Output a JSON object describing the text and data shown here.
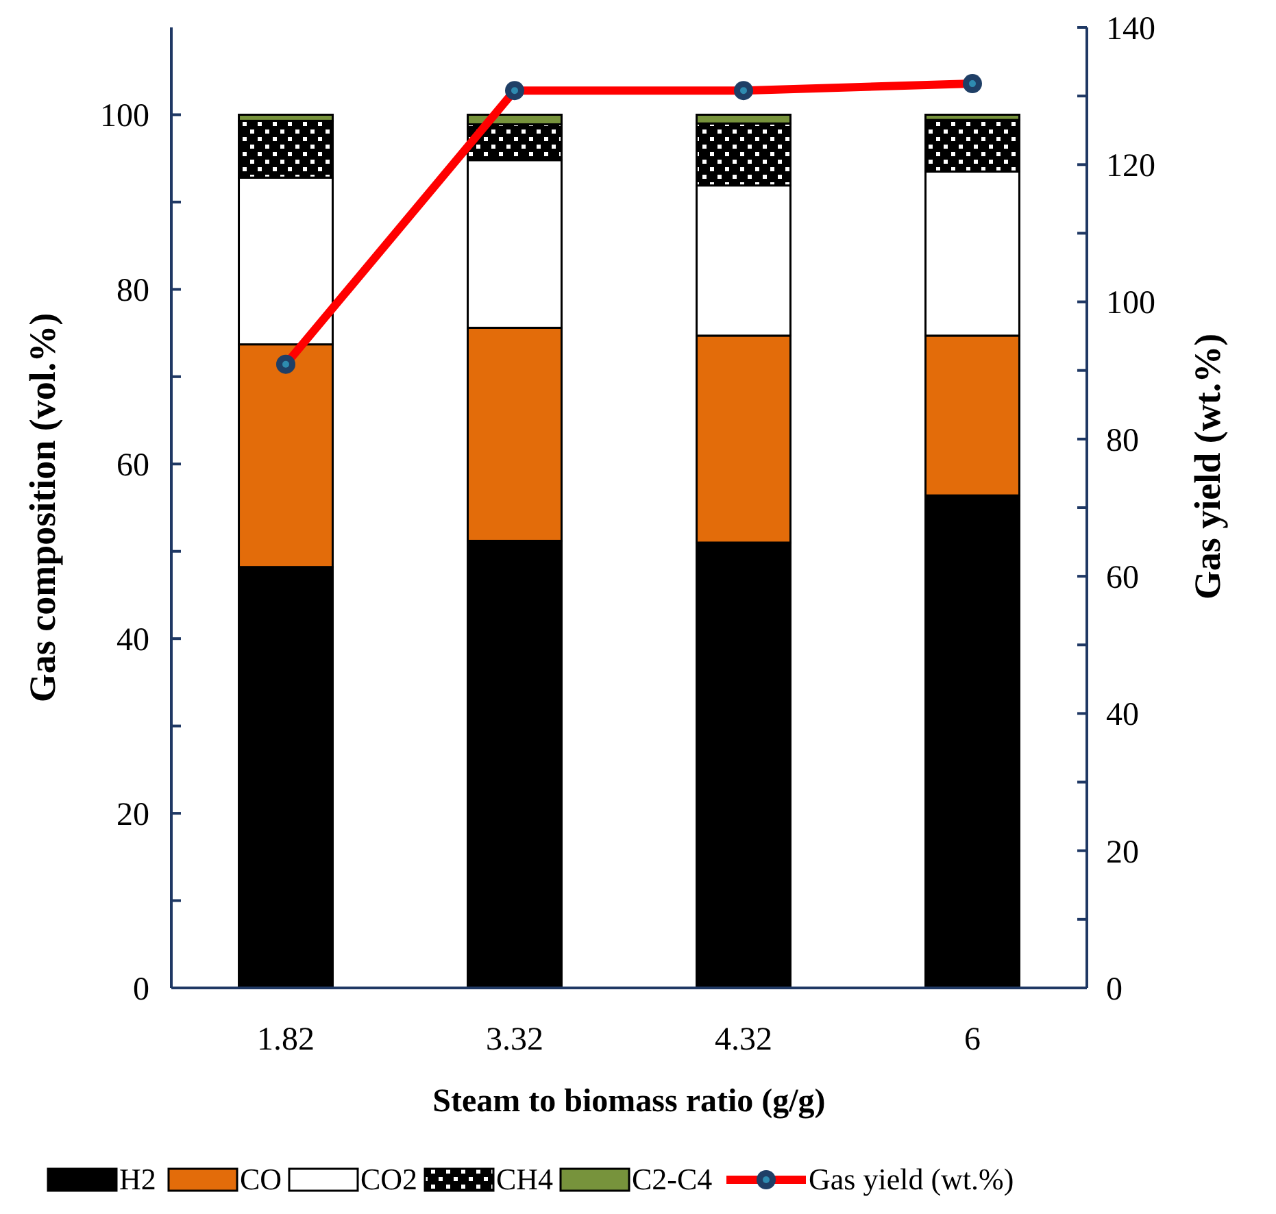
{
  "chart_data": {
    "type": "bar",
    "stacked": true,
    "xlabel": "Steam to biomass ratio (g/g)",
    "ylabel": "Gas composition (vol.%)",
    "y2label": "Gas yield (wt.%)",
    "categories": [
      "1.82",
      "3.32",
      "4.32",
      "6"
    ],
    "series": [
      {
        "name": "H2",
        "color": "#000000",
        "values": [
          48.2,
          51.2,
          51.0,
          56.4
        ]
      },
      {
        "name": "CO",
        "color": "#e36c0a",
        "values": [
          25.5,
          24.4,
          23.7,
          18.3
        ]
      },
      {
        "name": "CO2",
        "color": "#ffffff",
        "values": [
          19.1,
          19.2,
          17.2,
          18.8
        ]
      },
      {
        "name": "CH4",
        "color": "#000000",
        "values": [
          6.5,
          4.1,
          7.1,
          5.9
        ]
      },
      {
        "name": "C2-C4",
        "color": "#77933c",
        "values": [
          0.7,
          1.1,
          1.0,
          0.6
        ]
      },
      {
        "name": "Gas yield (wt.%)",
        "type": "line",
        "axis": "y2",
        "color": "#ff0000",
        "marker": "circle",
        "values": [
          90.9,
          130.8,
          130.8,
          131.8
        ]
      }
    ],
    "ylim": [
      0,
      110
    ],
    "yticks": [
      0,
      {
        "value": 10,
        "label": null
      },
      20,
      {
        "value": 30,
        "label": null
      },
      40,
      {
        "value": 50,
        "label": null
      },
      60,
      {
        "value": 70,
        "label": null
      },
      80,
      {
        "value": 90,
        "label": null
      },
      100
    ],
    "y2lim": [
      0,
      140
    ],
    "y2ticks": [
      0,
      {
        "value": 10,
        "label": null
      },
      20,
      {
        "value": 30,
        "label": null
      },
      40,
      {
        "value": 50,
        "label": null
      },
      60,
      {
        "value": 70,
        "label": null
      },
      80,
      {
        "value": 90,
        "label": null
      },
      100,
      {
        "value": 110,
        "label": null
      },
      120,
      {
        "value": 130,
        "label": null
      },
      140
    ],
    "grid": false,
    "legend": "bottom"
  }
}
